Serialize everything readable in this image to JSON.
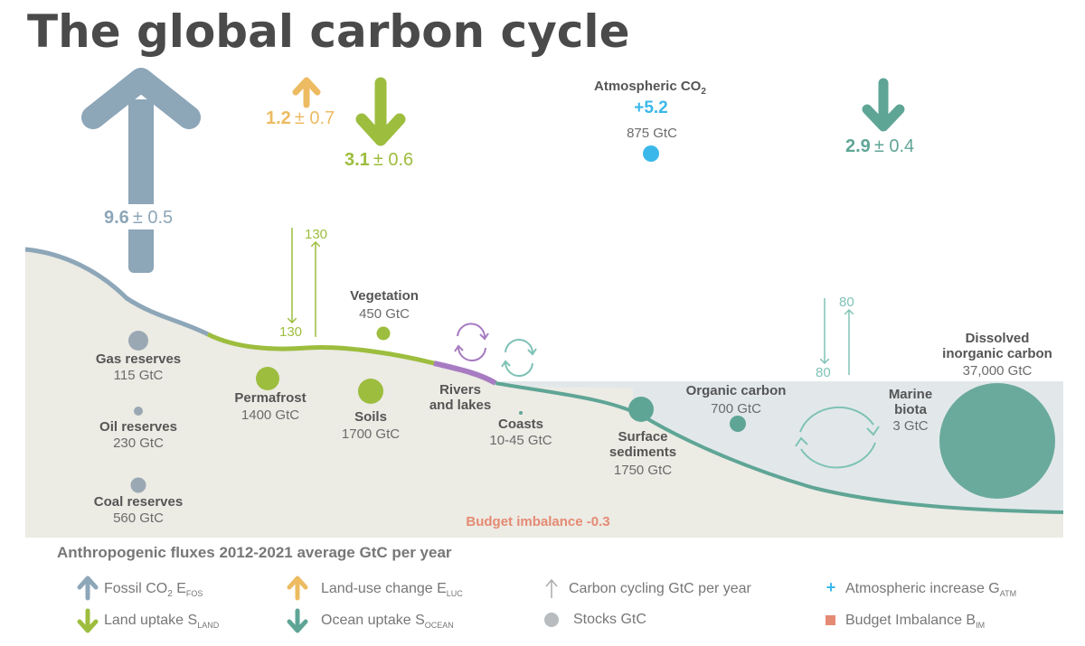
{
  "title": "The global carbon cycle",
  "colors": {
    "fossil": "#8da6b8",
    "land_use": "#edbb62",
    "land_uptake": "#9dbd3e",
    "ocean_uptake": "#5fa596",
    "atmosphere": "#3bb8ea",
    "imbalance": "#e58a73",
    "stock": "#9aa8b3",
    "rivers": "#a77bc2"
  },
  "fluxes": {
    "fossil": {
      "value": "9.6",
      "uncertainty": "± 0.5"
    },
    "land_use": {
      "value": "1.2",
      "uncertainty": "± 0.7"
    },
    "land_uptake": {
      "value": "3.1",
      "uncertainty": "± 0.6"
    },
    "ocean_uptake": {
      "value": "2.9",
      "uncertainty": "± 0.4"
    }
  },
  "atmosphere": {
    "label": "Atmospheric CO",
    "subscript": "2",
    "increase": "+5.2",
    "stock": "875 GtC"
  },
  "cycling": {
    "land_down": "130",
    "land_up": "130",
    "ocean_down": "80",
    "ocean_up": "80"
  },
  "stocks": {
    "gas": {
      "label": "Gas reserves",
      "value": "115 GtC"
    },
    "oil": {
      "label": "Oil reserves",
      "value": "230 GtC"
    },
    "coal": {
      "label": "Coal reserves",
      "value": "560 GtC"
    },
    "permafrost": {
      "label": "Permafrost",
      "value": "1400 GtC"
    },
    "soils": {
      "label": "Soils",
      "value": "1700 GtC"
    },
    "vegetation": {
      "label": "Vegetation",
      "value": "450 GtC"
    },
    "rivers": {
      "label1": "Rivers",
      "label2": "and lakes"
    },
    "coasts": {
      "label": "Coasts",
      "value": "10-45 GtC"
    },
    "sediments": {
      "label1": "Surface",
      "label2": "sediments",
      "value": "1750 GtC"
    },
    "organic": {
      "label": "Organic carbon",
      "value": "700 GtC"
    },
    "marine": {
      "label1": "Marine",
      "label2": "biota",
      "value": "3 GtC"
    },
    "dissolved": {
      "label1": "Dissolved",
      "label2": "inorganic carbon",
      "value": "37,000 GtC"
    }
  },
  "budget_imbalance": "Budget imbalance -0.3",
  "legend": {
    "heading": "Anthropogenic fluxes 2012-2021 average GtC per year",
    "fossil": {
      "text": "Fossil CO",
      "sub1": "2",
      "mid": " E",
      "sub2": "FOS"
    },
    "land_use": {
      "text": "Land-use change E",
      "sub": "LUC"
    },
    "cycling": "Carbon cycling GtC per year",
    "atm": {
      "text": "Atmospheric increase G",
      "sub": "ATM"
    },
    "land_uptake": {
      "text": "Land uptake S",
      "sub": "LAND"
    },
    "ocean_uptake": {
      "text": "Ocean uptake S",
      "sub": "OCEAN"
    },
    "stocks": "Stocks GtC",
    "imbalance": {
      "text": "Budget Imbalance B",
      "sub": "IM"
    }
  }
}
